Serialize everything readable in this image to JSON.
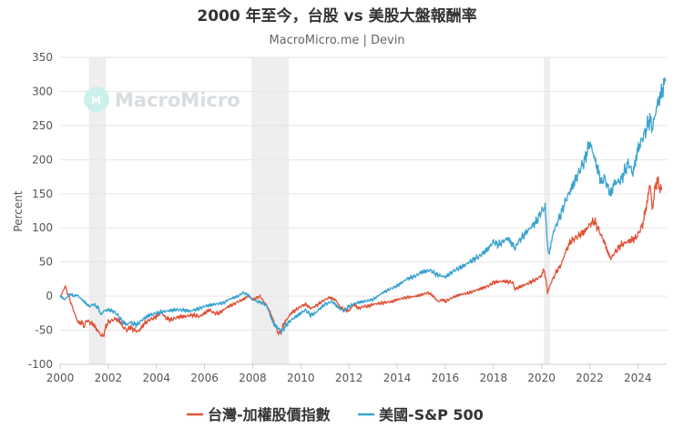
{
  "chart_data": {
    "type": "line",
    "title": "2000 年至今，台股 vs 美股大盤報酬率",
    "subtitle": "MacroMicro.me | Devin",
    "watermark": "MacroMicro",
    "ylabel": "Percent",
    "xlabel": "",
    "ylim": [
      -100,
      350
    ],
    "xlim": [
      2000,
      2025.2
    ],
    "yticks": [
      -100,
      -50,
      0,
      50,
      100,
      150,
      200,
      250,
      300,
      350
    ],
    "xticks": [
      "2000",
      "2002",
      "2004",
      "2006",
      "2008",
      "2010",
      "2012",
      "2014",
      "2016",
      "2018",
      "2020",
      "2022",
      "2024"
    ],
    "grid": "horizontal",
    "legend_position": "bottom",
    "shaded_periods": [
      [
        2001.2,
        2001.9
      ],
      [
        2007.95,
        2009.5
      ],
      [
        2020.1,
        2020.35
      ]
    ],
    "series": [
      {
        "name": "台灣-加權股價指數",
        "color": "#e0533a",
        "points": [
          [
            2000.0,
            0
          ],
          [
            2000.1,
            5
          ],
          [
            2000.2,
            15
          ],
          [
            2000.3,
            5
          ],
          [
            2000.4,
            -5
          ],
          [
            2000.5,
            -15
          ],
          [
            2000.6,
            -25
          ],
          [
            2000.7,
            -35
          ],
          [
            2000.8,
            -40
          ],
          [
            2000.9,
            -38
          ],
          [
            2001.0,
            -45
          ],
          [
            2001.1,
            -35
          ],
          [
            2001.2,
            -38
          ],
          [
            2001.3,
            -40
          ],
          [
            2001.4,
            -42
          ],
          [
            2001.5,
            -48
          ],
          [
            2001.6,
            -52
          ],
          [
            2001.7,
            -58
          ],
          [
            2001.8,
            -58
          ],
          [
            2001.9,
            -45
          ],
          [
            2002.0,
            -38
          ],
          [
            2002.2,
            -35
          ],
          [
            2002.3,
            -33
          ],
          [
            2002.5,
            -38
          ],
          [
            2002.6,
            -45
          ],
          [
            2002.8,
            -50
          ],
          [
            2002.9,
            -45
          ],
          [
            2003.0,
            -48
          ],
          [
            2003.2,
            -52
          ],
          [
            2003.3,
            -50
          ],
          [
            2003.5,
            -40
          ],
          [
            2003.7,
            -35
          ],
          [
            2003.9,
            -32
          ],
          [
            2004.0,
            -30
          ],
          [
            2004.2,
            -24
          ],
          [
            2004.4,
            -32
          ],
          [
            2004.6,
            -35
          ],
          [
            2004.8,
            -32
          ],
          [
            2005.0,
            -30
          ],
          [
            2005.2,
            -30
          ],
          [
            2005.4,
            -28
          ],
          [
            2005.6,
            -28
          ],
          [
            2005.8,
            -30
          ],
          [
            2006.0,
            -25
          ],
          [
            2006.2,
            -20
          ],
          [
            2006.4,
            -25
          ],
          [
            2006.6,
            -25
          ],
          [
            2006.8,
            -20
          ],
          [
            2007.0,
            -15
          ],
          [
            2007.2,
            -12
          ],
          [
            2007.4,
            -8
          ],
          [
            2007.6,
            -5
          ],
          [
            2007.8,
            0
          ],
          [
            2008.0,
            -5
          ],
          [
            2008.2,
            -2
          ],
          [
            2008.3,
            0
          ],
          [
            2008.4,
            -5
          ],
          [
            2008.6,
            -15
          ],
          [
            2008.8,
            -30
          ],
          [
            2008.9,
            -40
          ],
          [
            2009.0,
            -50
          ],
          [
            2009.1,
            -55
          ],
          [
            2009.2,
            -50
          ],
          [
            2009.3,
            -40
          ],
          [
            2009.4,
            -35
          ],
          [
            2009.6,
            -25
          ],
          [
            2009.8,
            -20
          ],
          [
            2010.0,
            -15
          ],
          [
            2010.2,
            -12
          ],
          [
            2010.4,
            -18
          ],
          [
            2010.6,
            -15
          ],
          [
            2010.8,
            -10
          ],
          [
            2011.0,
            -5
          ],
          [
            2011.2,
            -2
          ],
          [
            2011.4,
            -5
          ],
          [
            2011.5,
            -8
          ],
          [
            2011.6,
            -15
          ],
          [
            2011.8,
            -20
          ],
          [
            2012.0,
            -22
          ],
          [
            2012.2,
            -12
          ],
          [
            2012.4,
            -18
          ],
          [
            2012.6,
            -15
          ],
          [
            2012.8,
            -15
          ],
          [
            2013.0,
            -12
          ],
          [
            2013.4,
            -10
          ],
          [
            2013.8,
            -8
          ],
          [
            2014.0,
            -5
          ],
          [
            2014.4,
            -2
          ],
          [
            2014.8,
            0
          ],
          [
            2015.0,
            2
          ],
          [
            2015.3,
            5
          ],
          [
            2015.5,
            0
          ],
          [
            2015.7,
            -8
          ],
          [
            2015.9,
            -5
          ],
          [
            2016.0,
            -8
          ],
          [
            2016.3,
            -2
          ],
          [
            2016.6,
            2
          ],
          [
            2017.0,
            5
          ],
          [
            2017.4,
            10
          ],
          [
            2017.8,
            15
          ],
          [
            2018.0,
            20
          ],
          [
            2018.4,
            22
          ],
          [
            2018.8,
            20
          ],
          [
            2018.9,
            10
          ],
          [
            2019.0,
            12
          ],
          [
            2019.4,
            18
          ],
          [
            2019.8,
            25
          ],
          [
            2020.0,
            30
          ],
          [
            2020.1,
            40
          ],
          [
            2020.2,
            20
          ],
          [
            2020.25,
            5
          ],
          [
            2020.4,
            20
          ],
          [
            2020.6,
            35
          ],
          [
            2020.8,
            45
          ],
          [
            2021.0,
            65
          ],
          [
            2021.2,
            80
          ],
          [
            2021.4,
            85
          ],
          [
            2021.6,
            90
          ],
          [
            2021.8,
            95
          ],
          [
            2022.0,
            105
          ],
          [
            2022.2,
            110
          ],
          [
            2022.4,
            95
          ],
          [
            2022.6,
            80
          ],
          [
            2022.8,
            60
          ],
          [
            2022.9,
            55
          ],
          [
            2023.0,
            62
          ],
          [
            2023.3,
            75
          ],
          [
            2023.6,
            80
          ],
          [
            2023.9,
            85
          ],
          [
            2024.0,
            90
          ],
          [
            2024.2,
            105
          ],
          [
            2024.4,
            140
          ],
          [
            2024.5,
            165
          ],
          [
            2024.55,
            150
          ],
          [
            2024.6,
            125
          ],
          [
            2024.7,
            155
          ],
          [
            2024.8,
            170
          ],
          [
            2024.9,
            160
          ],
          [
            2025.0,
            155
          ]
        ]
      },
      {
        "name": "美國-S&P 500",
        "color": "#3aa3d0",
        "points": [
          [
            2000.0,
            0
          ],
          [
            2000.2,
            -5
          ],
          [
            2000.4,
            3
          ],
          [
            2000.6,
            0
          ],
          [
            2000.7,
            2
          ],
          [
            2000.9,
            -5
          ],
          [
            2001.0,
            -8
          ],
          [
            2001.2,
            -15
          ],
          [
            2001.4,
            -12
          ],
          [
            2001.6,
            -18
          ],
          [
            2001.7,
            -28
          ],
          [
            2001.8,
            -22
          ],
          [
            2002.0,
            -20
          ],
          [
            2002.2,
            -22
          ],
          [
            2002.4,
            -28
          ],
          [
            2002.6,
            -38
          ],
          [
            2002.8,
            -42
          ],
          [
            2002.9,
            -38
          ],
          [
            2003.0,
            -40
          ],
          [
            2003.2,
            -42
          ],
          [
            2003.4,
            -35
          ],
          [
            2003.7,
            -28
          ],
          [
            2004.0,
            -25
          ],
          [
            2004.4,
            -22
          ],
          [
            2004.8,
            -20
          ],
          [
            2005.0,
            -20
          ],
          [
            2005.4,
            -22
          ],
          [
            2005.8,
            -18
          ],
          [
            2006.0,
            -15
          ],
          [
            2006.4,
            -12
          ],
          [
            2006.8,
            -10
          ],
          [
            2007.0,
            -5
          ],
          [
            2007.4,
            0
          ],
          [
            2007.6,
            5
          ],
          [
            2007.8,
            2
          ],
          [
            2008.0,
            -5
          ],
          [
            2008.2,
            -8
          ],
          [
            2008.4,
            -10
          ],
          [
            2008.6,
            -15
          ],
          [
            2008.8,
            -35
          ],
          [
            2008.9,
            -42
          ],
          [
            2009.0,
            -45
          ],
          [
            2009.2,
            -52
          ],
          [
            2009.4,
            -42
          ],
          [
            2009.6,
            -35
          ],
          [
            2009.8,
            -30
          ],
          [
            2010.0,
            -25
          ],
          [
            2010.2,
            -20
          ],
          [
            2010.4,
            -28
          ],
          [
            2010.6,
            -25
          ],
          [
            2010.8,
            -18
          ],
          [
            2011.0,
            -12
          ],
          [
            2011.3,
            -8
          ],
          [
            2011.6,
            -18
          ],
          [
            2011.8,
            -22
          ],
          [
            2012.0,
            -15
          ],
          [
            2012.3,
            -10
          ],
          [
            2012.6,
            -8
          ],
          [
            2013.0,
            -5
          ],
          [
            2013.4,
            5
          ],
          [
            2013.8,
            12
          ],
          [
            2014.0,
            15
          ],
          [
            2014.4,
            25
          ],
          [
            2014.8,
            30
          ],
          [
            2015.0,
            35
          ],
          [
            2015.4,
            38
          ],
          [
            2015.6,
            32
          ],
          [
            2015.8,
            30
          ],
          [
            2016.0,
            28
          ],
          [
            2016.4,
            38
          ],
          [
            2016.8,
            45
          ],
          [
            2017.0,
            50
          ],
          [
            2017.4,
            58
          ],
          [
            2017.8,
            70
          ],
          [
            2018.0,
            80
          ],
          [
            2018.2,
            75
          ],
          [
            2018.6,
            85
          ],
          [
            2018.9,
            70
          ],
          [
            2019.0,
            78
          ],
          [
            2019.4,
            95
          ],
          [
            2019.8,
            110
          ],
          [
            2020.0,
            125
          ],
          [
            2020.15,
            130
          ],
          [
            2020.25,
            75
          ],
          [
            2020.3,
            60
          ],
          [
            2020.5,
            95
          ],
          [
            2020.8,
            120
          ],
          [
            2021.0,
            140
          ],
          [
            2021.4,
            170
          ],
          [
            2021.8,
            200
          ],
          [
            2022.0,
            225
          ],
          [
            2022.1,
            215
          ],
          [
            2022.3,
            190
          ],
          [
            2022.5,
            165
          ],
          [
            2022.6,
            175
          ],
          [
            2022.8,
            155
          ],
          [
            2022.9,
            150
          ],
          [
            2023.0,
            165
          ],
          [
            2023.3,
            170
          ],
          [
            2023.6,
            195
          ],
          [
            2023.8,
            180
          ],
          [
            2024.0,
            215
          ],
          [
            2024.3,
            240
          ],
          [
            2024.5,
            260
          ],
          [
            2024.6,
            245
          ],
          [
            2024.8,
            280
          ],
          [
            2025.0,
            300
          ],
          [
            2025.15,
            315
          ]
        ]
      }
    ]
  }
}
